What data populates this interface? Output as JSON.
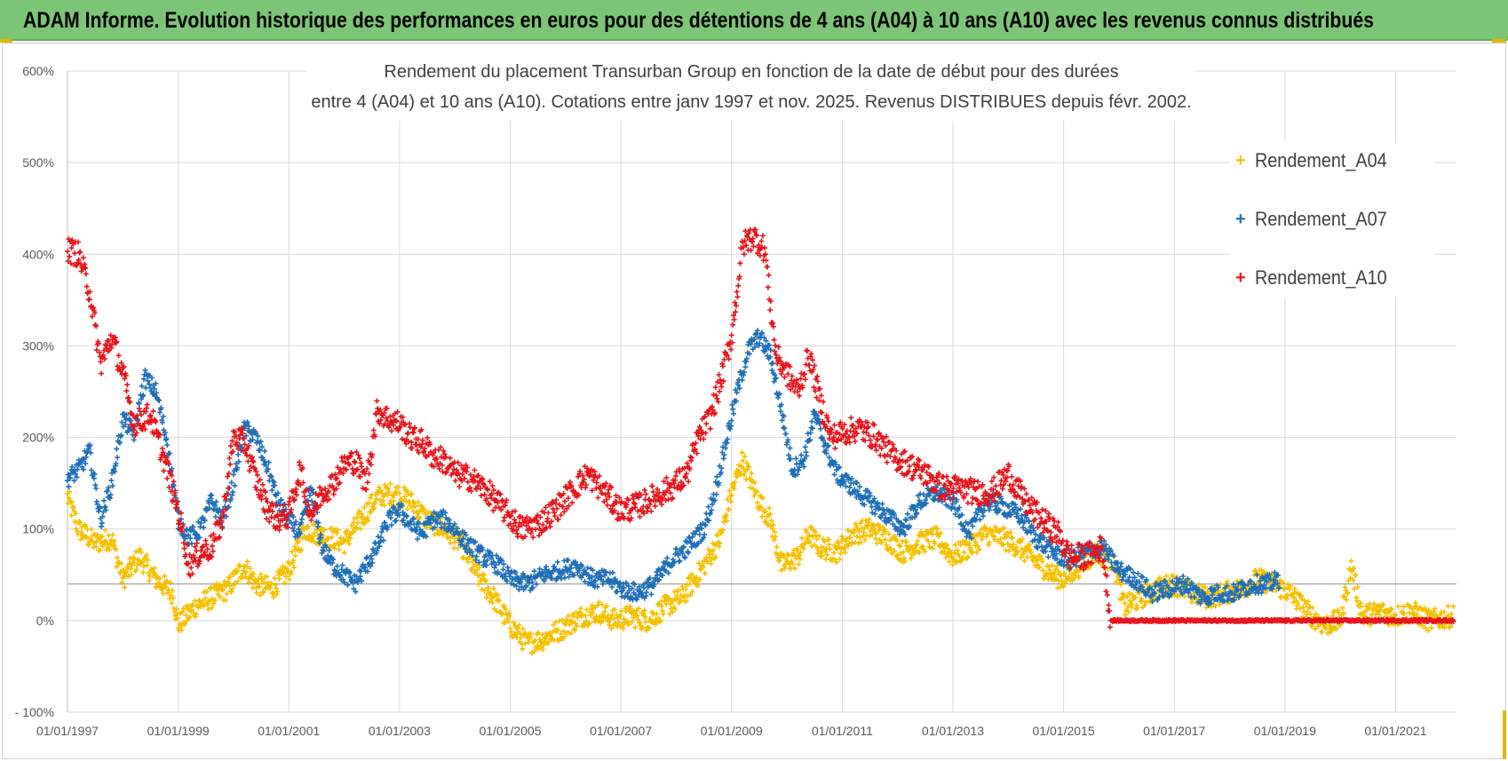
{
  "header": {
    "banner_text": "ADAM Informe. Evolution historique des performances en euros pour des détentions de 4 ans (A04) à 10 ans (A10) avec les revenus connus distribués",
    "banner_color": "#7cc576"
  },
  "chart_data": {
    "type": "scatter",
    "title_line1": "Rendement du placement Transurban Group en fonction de la date de début pour des durées",
    "title_line2": "entre 4 (A04) et 10 ans (A10).  Cotations entre janv 1997 et  nov. 2025. Revenus DISTRIBUES depuis févr. 2002.",
    "xlabel": "",
    "ylabel": "",
    "x_tick_labels": [
      "01/01/1997",
      "01/01/1999",
      "01/01/2001",
      "01/01/2003",
      "01/01/2005",
      "01/01/2007",
      "01/01/2009",
      "01/01/2011",
      "01/01/2013",
      "01/01/2015",
      "01/01/2017",
      "01/01/2019",
      "01/01/2021"
    ],
    "y_tick_labels": [
      "600%",
      "500%",
      "400%",
      "300%",
      "200%",
      "100%",
      "0%",
      "- 100%"
    ],
    "y_ticks": [
      600,
      500,
      400,
      300,
      200,
      100,
      0,
      -100
    ],
    "xlim": [
      1997.0,
      2022.1
    ],
    "ylim": [
      -100,
      600
    ],
    "reference_line": 40,
    "legend_position": "right",
    "series": [
      {
        "name": "Rendement_A04",
        "color": "#f5c000",
        "end": 2022.05,
        "noise": 12,
        "points": [
          [
            1997.0,
            135
          ],
          [
            1997.2,
            100
          ],
          [
            1997.5,
            85
          ],
          [
            1997.8,
            90
          ],
          [
            1998.0,
            45
          ],
          [
            1998.3,
            70
          ],
          [
            1998.6,
            45
          ],
          [
            1998.9,
            30
          ],
          [
            1999.0,
            -5
          ],
          [
            1999.3,
            15
          ],
          [
            1999.6,
            25
          ],
          [
            1999.9,
            35
          ],
          [
            2000.2,
            60
          ],
          [
            2000.4,
            40
          ],
          [
            2000.7,
            35
          ],
          [
            2001.0,
            55
          ],
          [
            2001.3,
            100
          ],
          [
            2001.5,
            95
          ],
          [
            2001.8,
            90
          ],
          [
            2002.0,
            85
          ],
          [
            2002.3,
            110
          ],
          [
            2002.6,
            135
          ],
          [
            2002.9,
            140
          ],
          [
            2003.2,
            130
          ],
          [
            2003.5,
            110
          ],
          [
            2003.8,
            100
          ],
          [
            2004.1,
            85
          ],
          [
            2004.4,
            50
          ],
          [
            2004.7,
            25
          ],
          [
            2005.0,
            -5
          ],
          [
            2005.3,
            -25
          ],
          [
            2005.6,
            -20
          ],
          [
            2005.9,
            -10
          ],
          [
            2006.3,
            5
          ],
          [
            2006.6,
            10
          ],
          [
            2006.9,
            0
          ],
          [
            2007.2,
            5
          ],
          [
            2007.5,
            0
          ],
          [
            2007.8,
            15
          ],
          [
            2008.1,
            25
          ],
          [
            2008.4,
            50
          ],
          [
            2008.6,
            70
          ],
          [
            2008.8,
            90
          ],
          [
            2009.0,
            140
          ],
          [
            2009.2,
            175
          ],
          [
            2009.5,
            130
          ],
          [
            2009.7,
            110
          ],
          [
            2009.9,
            60
          ],
          [
            2010.2,
            70
          ],
          [
            2010.4,
            95
          ],
          [
            2010.6,
            80
          ],
          [
            2010.9,
            75
          ],
          [
            2011.2,
            95
          ],
          [
            2011.5,
            100
          ],
          [
            2011.8,
            90
          ],
          [
            2012.1,
            75
          ],
          [
            2012.4,
            85
          ],
          [
            2012.7,
            90
          ],
          [
            2013.0,
            70
          ],
          [
            2013.3,
            80
          ],
          [
            2013.6,
            95
          ],
          [
            2013.9,
            90
          ],
          [
            2014.2,
            80
          ],
          [
            2014.5,
            65
          ],
          [
            2014.8,
            50
          ],
          [
            2015.0,
            45
          ],
          [
            2015.3,
            60
          ],
          [
            2015.6,
            75
          ],
          [
            2015.9,
            65
          ],
          [
            2016.1,
            15
          ],
          [
            2016.4,
            25
          ],
          [
            2016.7,
            35
          ],
          [
            2017.0,
            40
          ],
          [
            2017.3,
            30
          ],
          [
            2017.6,
            25
          ],
          [
            2017.9,
            30
          ],
          [
            2018.2,
            35
          ],
          [
            2018.5,
            45
          ],
          [
            2018.8,
            40
          ],
          [
            2019.1,
            30
          ],
          [
            2019.4,
            10
          ],
          [
            2019.7,
            -5
          ],
          [
            2020.0,
            0
          ],
          [
            2020.2,
            60
          ],
          [
            2020.4,
            5
          ],
          [
            2020.7,
            10
          ],
          [
            2021.0,
            5
          ],
          [
            2021.3,
            10
          ],
          [
            2021.6,
            0
          ],
          [
            2022.05,
            5
          ]
        ]
      },
      {
        "name": "Rendement_A07",
        "color": "#1f6fb8",
        "end": 2018.9,
        "noise": 10,
        "points": [
          [
            1997.0,
            155
          ],
          [
            1997.2,
            165
          ],
          [
            1997.4,
            185
          ],
          [
            1997.6,
            110
          ],
          [
            1997.8,
            150
          ],
          [
            1998.0,
            220
          ],
          [
            1998.2,
            205
          ],
          [
            1998.4,
            265
          ],
          [
            1998.6,
            250
          ],
          [
            1998.8,
            195
          ],
          [
            1999.0,
            110
          ],
          [
            1999.2,
            90
          ],
          [
            1999.4,
            100
          ],
          [
            1999.6,
            130
          ],
          [
            1999.8,
            110
          ],
          [
            2000.0,
            150
          ],
          [
            2000.2,
            210
          ],
          [
            2000.4,
            200
          ],
          [
            2000.6,
            170
          ],
          [
            2000.8,
            130
          ],
          [
            2001.0,
            110
          ],
          [
            2001.2,
            95
          ],
          [
            2001.4,
            145
          ],
          [
            2001.6,
            80
          ],
          [
            2001.8,
            60
          ],
          [
            2002.0,
            50
          ],
          [
            2002.2,
            40
          ],
          [
            2002.4,
            60
          ],
          [
            2002.6,
            80
          ],
          [
            2002.8,
            110
          ],
          [
            2003.0,
            120
          ],
          [
            2003.2,
            105
          ],
          [
            2003.4,
            95
          ],
          [
            2003.6,
            110
          ],
          [
            2003.8,
            110
          ],
          [
            2004.0,
            100
          ],
          [
            2004.2,
            85
          ],
          [
            2004.5,
            70
          ],
          [
            2004.8,
            60
          ],
          [
            2005.0,
            45
          ],
          [
            2005.3,
            40
          ],
          [
            2005.6,
            50
          ],
          [
            2005.9,
            55
          ],
          [
            2006.2,
            60
          ],
          [
            2006.5,
            45
          ],
          [
            2006.8,
            45
          ],
          [
            2007.0,
            35
          ],
          [
            2007.3,
            30
          ],
          [
            2007.6,
            40
          ],
          [
            2007.9,
            65
          ],
          [
            2008.2,
            80
          ],
          [
            2008.5,
            100
          ],
          [
            2008.7,
            140
          ],
          [
            2008.9,
            195
          ],
          [
            2009.1,
            250
          ],
          [
            2009.3,
            295
          ],
          [
            2009.5,
            310
          ],
          [
            2009.7,
            290
          ],
          [
            2009.9,
            230
          ],
          [
            2010.1,
            165
          ],
          [
            2010.3,
            175
          ],
          [
            2010.5,
            225
          ],
          [
            2010.7,
            190
          ],
          [
            2010.9,
            160
          ],
          [
            2011.2,
            145
          ],
          [
            2011.5,
            130
          ],
          [
            2011.8,
            115
          ],
          [
            2012.1,
            100
          ],
          [
            2012.4,
            130
          ],
          [
            2012.7,
            140
          ],
          [
            2013.0,
            130
          ],
          [
            2013.3,
            95
          ],
          [
            2013.6,
            130
          ],
          [
            2013.9,
            125
          ],
          [
            2014.2,
            115
          ],
          [
            2014.5,
            90
          ],
          [
            2014.8,
            75
          ],
          [
            2015.1,
            65
          ],
          [
            2015.4,
            75
          ],
          [
            2015.7,
            80
          ],
          [
            2016.0,
            55
          ],
          [
            2016.3,
            45
          ],
          [
            2016.6,
            30
          ],
          [
            2016.9,
            35
          ],
          [
            2017.2,
            40
          ],
          [
            2017.5,
            25
          ],
          [
            2017.8,
            30
          ],
          [
            2018.1,
            30
          ],
          [
            2018.4,
            40
          ],
          [
            2018.7,
            40
          ],
          [
            2018.9,
            45
          ]
        ]
      },
      {
        "name": "Rendement_A10",
        "color": "#e8141b",
        "end": 2022.05,
        "noise": 14,
        "points": [
          [
            1997.0,
            405
          ],
          [
            1997.2,
            400
          ],
          [
            1997.4,
            360
          ],
          [
            1997.6,
            280
          ],
          [
            1997.8,
            310
          ],
          [
            1998.0,
            270
          ],
          [
            1998.2,
            215
          ],
          [
            1998.5,
            225
          ],
          [
            1998.8,
            165
          ],
          [
            1999.0,
            120
          ],
          [
            1999.2,
            60
          ],
          [
            1999.4,
            75
          ],
          [
            1999.6,
            80
          ],
          [
            1999.8,
            110
          ],
          [
            2000.0,
            200
          ],
          [
            2000.2,
            195
          ],
          [
            2000.4,
            155
          ],
          [
            2000.6,
            125
          ],
          [
            2000.8,
            110
          ],
          [
            2001.0,
            115
          ],
          [
            2001.2,
            165
          ],
          [
            2001.4,
            115
          ],
          [
            2001.6,
            140
          ],
          [
            2001.8,
            150
          ],
          [
            2002.0,
            170
          ],
          [
            2002.2,
            175
          ],
          [
            2002.4,
            150
          ],
          [
            2002.6,
            230
          ],
          [
            2002.8,
            220
          ],
          [
            2003.0,
            215
          ],
          [
            2003.2,
            200
          ],
          [
            2003.4,
            195
          ],
          [
            2003.6,
            180
          ],
          [
            2003.8,
            175
          ],
          [
            2004.0,
            160
          ],
          [
            2004.3,
            155
          ],
          [
            2004.6,
            140
          ],
          [
            2004.9,
            120
          ],
          [
            2005.2,
            100
          ],
          [
            2005.5,
            105
          ],
          [
            2005.8,
            120
          ],
          [
            2006.1,
            140
          ],
          [
            2006.4,
            160
          ],
          [
            2006.7,
            140
          ],
          [
            2007.0,
            120
          ],
          [
            2007.3,
            125
          ],
          [
            2007.6,
            135
          ],
          [
            2007.9,
            145
          ],
          [
            2008.2,
            160
          ],
          [
            2008.4,
            200
          ],
          [
            2008.6,
            220
          ],
          [
            2008.8,
            260
          ],
          [
            2009.0,
            310
          ],
          [
            2009.2,
            410
          ],
          [
            2009.4,
            420
          ],
          [
            2009.6,
            405
          ],
          [
            2009.8,
            290
          ],
          [
            2010.0,
            270
          ],
          [
            2010.2,
            250
          ],
          [
            2010.4,
            290
          ],
          [
            2010.6,
            240
          ],
          [
            2010.8,
            200
          ],
          [
            2011.0,
            205
          ],
          [
            2011.3,
            210
          ],
          [
            2011.6,
            200
          ],
          [
            2011.9,
            180
          ],
          [
            2012.2,
            170
          ],
          [
            2012.5,
            160
          ],
          [
            2012.8,
            145
          ],
          [
            2013.1,
            145
          ],
          [
            2013.4,
            140
          ],
          [
            2013.7,
            140
          ],
          [
            2014.0,
            160
          ],
          [
            2014.3,
            130
          ],
          [
            2014.6,
            110
          ],
          [
            2014.9,
            95
          ],
          [
            2015.1,
            70
          ],
          [
            2015.4,
            70
          ],
          [
            2015.7,
            80
          ],
          [
            2015.85,
            0
          ],
          [
            2022.05,
            0
          ]
        ]
      }
    ]
  }
}
